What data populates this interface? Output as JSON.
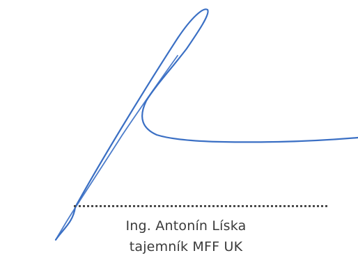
{
  "signature_block": {
    "name": "Ing. Antonín Líska",
    "title": "tajemník MFF UK"
  },
  "colors": {
    "ink": "#3a6fc4",
    "text": "#3a3a3a",
    "dots": "#4a4a4a"
  }
}
